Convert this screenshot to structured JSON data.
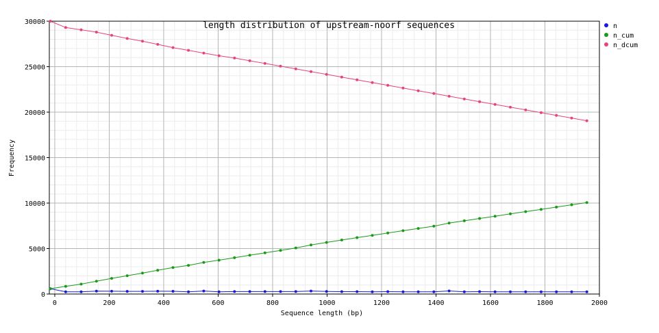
{
  "chart_data": {
    "type": "line",
    "title": "length distribution of upstream-noorf sequences",
    "xlabel": "Sequence length (bp)",
    "ylabel": "Frequency",
    "xlim": [
      -20,
      2000
    ],
    "ylim": [
      0,
      30000
    ],
    "x_ticks": [
      0,
      200,
      400,
      600,
      800,
      1000,
      1200,
      1400,
      1600,
      1800,
      2000
    ],
    "y_ticks": [
      0,
      5000,
      10000,
      15000,
      20000,
      25000,
      30000
    ],
    "x_tick_labels": [
      "0",
      "200",
      "400",
      "600",
      "800",
      "1000",
      "1200",
      "1400",
      "1600",
      "1800",
      "2000"
    ],
    "y_tick_labels": [
      "0",
      "5000",
      "10000",
      "15000",
      "20000",
      "25000",
      "30000"
    ],
    "grid": true,
    "legend_position": "top-right",
    "x": [
      -16,
      40,
      97,
      153,
      209,
      266,
      322,
      378,
      434,
      491,
      547,
      603,
      660,
      716,
      772,
      829,
      885,
      941,
      998,
      1054,
      1110,
      1166,
      1223,
      1279,
      1335,
      1392,
      1448,
      1504,
      1560,
      1617,
      1673,
      1729,
      1786,
      1842,
      1898,
      1954
    ],
    "series": [
      {
        "name": "n",
        "color": "#1a1ad9",
        "values": [
          590,
          250,
          250,
          320,
          310,
          290,
          290,
          310,
          300,
          240,
          330,
          240,
          270,
          270,
          270,
          270,
          270,
          330,
          280,
          260,
          260,
          250,
          260,
          250,
          250,
          250,
          340,
          250,
          260,
          250,
          250,
          250,
          250,
          250,
          250,
          250
        ]
      },
      {
        "name": "n_cum",
        "color": "#1a9a1a",
        "values": [
          590,
          840,
          1090,
          1410,
          1720,
          2010,
          2300,
          2610,
          2910,
          3150,
          3480,
          3720,
          3990,
          4260,
          4530,
          4800,
          5070,
          5400,
          5680,
          5940,
          6200,
          6450,
          6710,
          6960,
          7210,
          7460,
          7800,
          8050,
          8310,
          8560,
          8810,
          9060,
          9310,
          9560,
          9810,
          10060
        ]
      },
      {
        "name": "n_dcum",
        "color": "#e8437a",
        "values": [
          30000,
          29300,
          29050,
          28800,
          28450,
          28100,
          27800,
          27450,
          27100,
          26800,
          26500,
          26200,
          25950,
          25650,
          25350,
          25050,
          24750,
          24450,
          24150,
          23850,
          23550,
          23250,
          22950,
          22650,
          22350,
          22050,
          21750,
          21450,
          21150,
          20850,
          20550,
          20250,
          19950,
          19650,
          19350,
          19050
        ]
      }
    ]
  }
}
